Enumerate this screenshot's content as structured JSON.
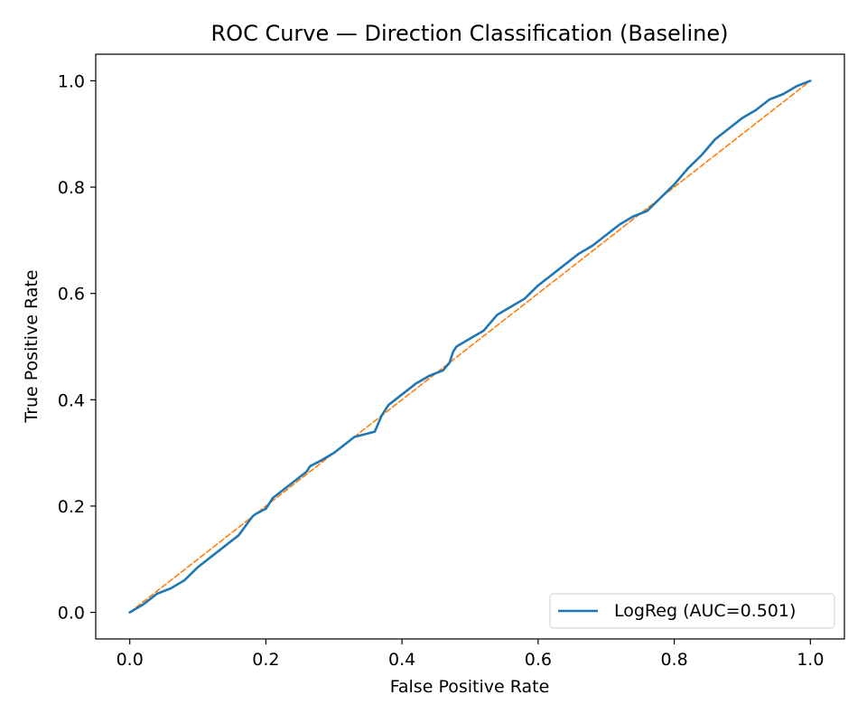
{
  "chart_data": {
    "type": "line",
    "title": "ROC Curve — Direction Classification (Baseline)",
    "xlabel": "False Positive Rate",
    "ylabel": "True Positive Rate",
    "xlim": [
      -0.05,
      1.05
    ],
    "ylim": [
      -0.05,
      1.05
    ],
    "xticks": [
      0.0,
      0.2,
      0.4,
      0.6,
      0.8,
      1.0
    ],
    "yticks": [
      0.0,
      0.2,
      0.4,
      0.6,
      0.8,
      1.0
    ],
    "x_tick_labels": [
      "0.0",
      "0.2",
      "0.4",
      "0.6",
      "0.8",
      "1.0"
    ],
    "y_tick_labels": [
      "0.0",
      "0.2",
      "0.4",
      "0.6",
      "0.8",
      "1.0"
    ],
    "grid": false,
    "legend_position": "lower-right",
    "series": [
      {
        "name": "LogReg (AUC=0.501)",
        "color": "#1f77b4",
        "style": "solid",
        "x": [
          0.0,
          0.02,
          0.04,
          0.06,
          0.08,
          0.1,
          0.12,
          0.14,
          0.16,
          0.18,
          0.185,
          0.2,
          0.21,
          0.22,
          0.24,
          0.26,
          0.265,
          0.28,
          0.3,
          0.32,
          0.33,
          0.36,
          0.37,
          0.38,
          0.4,
          0.42,
          0.44,
          0.46,
          0.47,
          0.475,
          0.48,
          0.5,
          0.52,
          0.54,
          0.56,
          0.58,
          0.6,
          0.62,
          0.64,
          0.66,
          0.68,
          0.7,
          0.72,
          0.74,
          0.76,
          0.78,
          0.8,
          0.82,
          0.84,
          0.86,
          0.88,
          0.9,
          0.92,
          0.94,
          0.96,
          0.98,
          1.0
        ],
        "y": [
          0.0,
          0.015,
          0.035,
          0.045,
          0.06,
          0.085,
          0.105,
          0.125,
          0.145,
          0.18,
          0.185,
          0.195,
          0.215,
          0.225,
          0.245,
          0.265,
          0.275,
          0.285,
          0.3,
          0.32,
          0.33,
          0.34,
          0.37,
          0.39,
          0.41,
          0.43,
          0.445,
          0.455,
          0.47,
          0.49,
          0.5,
          0.515,
          0.53,
          0.56,
          0.575,
          0.59,
          0.615,
          0.635,
          0.655,
          0.675,
          0.69,
          0.71,
          0.73,
          0.745,
          0.755,
          0.78,
          0.805,
          0.835,
          0.86,
          0.89,
          0.91,
          0.93,
          0.945,
          0.965,
          0.975,
          0.99,
          1.0
        ]
      },
      {
        "name": "",
        "color": "#ff7f0e",
        "style": "dashed",
        "x": [
          0.0,
          1.0
        ],
        "y": [
          0.0,
          1.0
        ]
      }
    ]
  }
}
